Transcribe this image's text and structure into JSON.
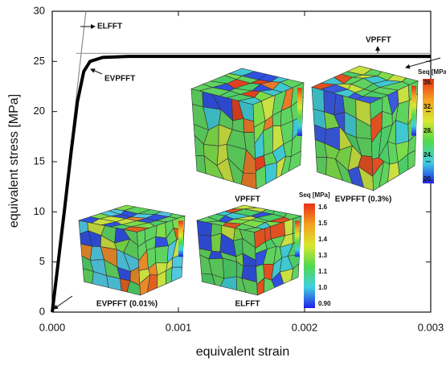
{
  "chart_data": {
    "type": "line",
    "x_label": "equivalent strain",
    "y_label": "equivalent stress [MPa]",
    "xlim": [
      0,
      0.003
    ],
    "ylim": [
      0,
      30
    ],
    "xticks": [
      {
        "value": 0,
        "label": "0.000"
      },
      0.001,
      0.002,
      0.003
    ],
    "yticks": [
      0,
      5,
      10,
      15,
      20,
      25,
      30
    ],
    "series": [
      {
        "name": "ELFFT",
        "color": "#8c8c8c",
        "x": [
          0,
          0.000267
        ],
        "values": [
          0,
          30
        ]
      },
      {
        "name": "VPFFT",
        "color": "#a0a0a0",
        "x": [
          0.00019,
          0.003
        ],
        "values": [
          25.8,
          25.8
        ]
      },
      {
        "name": "EVPFFT",
        "color": "#000000",
        "x": [
          0,
          0.0001,
          0.00015,
          0.0002,
          0.00025,
          0.0003,
          0.0004,
          0.0006,
          0.003
        ],
        "values": [
          0,
          10.5,
          16,
          21,
          24,
          25,
          25.4,
          25.5,
          25.5
        ]
      }
    ],
    "insets": [
      "VPFFT",
      "EVPFFT (0.3%)",
      "EVPFFT (0.01%)",
      "ELFFT"
    ],
    "colorbars": [
      {
        "title": "Seq [MPa",
        "labels": [
          "36.",
          "32.",
          "28.",
          "24.",
          "20."
        ]
      },
      {
        "title": "Seq [MPa]",
        "labels": [
          "1.6",
          "1.5",
          "1.4",
          "1.3",
          "1.1",
          "1.0",
          "0.90"
        ]
      }
    ]
  }
}
